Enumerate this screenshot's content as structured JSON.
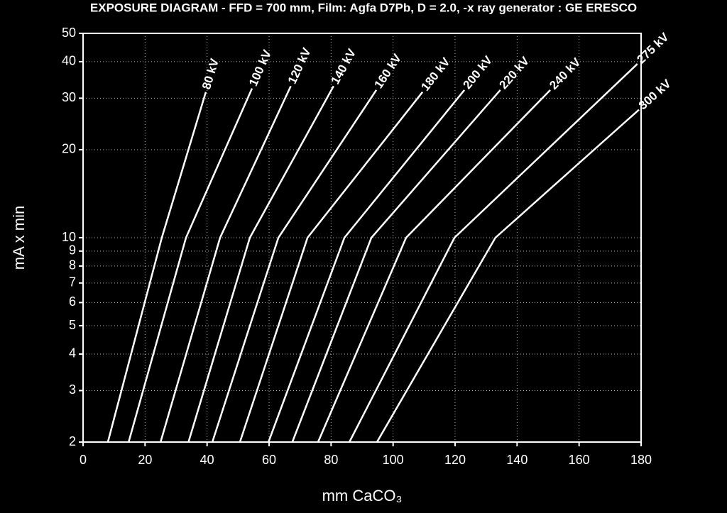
{
  "chart_data": {
    "type": "line",
    "title": "EXPOSURE DIAGRAM - FFD = 700 mm, Film: Agfa D7Pb, D = 2.0, -x ray generator : GE ERESCO",
    "xlabel": "mm CaCO₃",
    "ylabel": "mA x min",
    "xlim": [
      0,
      180
    ],
    "xticks": [
      0,
      20,
      40,
      60,
      80,
      100,
      120,
      140,
      160,
      180
    ],
    "ylim": [
      2,
      50
    ],
    "yticks": [
      2,
      3,
      4,
      5,
      6,
      7,
      8,
      9,
      10,
      20,
      30,
      40,
      50
    ],
    "yscale": "log",
    "grid": true,
    "color": "#ffffff",
    "series": [
      {
        "name": "80 kV",
        "x": [
          8,
          25.4,
          39.6
        ],
        "values": [
          2,
          10,
          31.5
        ]
      },
      {
        "name": "100 kV",
        "x": [
          14.7,
          33.2,
          54.5
        ],
        "values": [
          2,
          10,
          32.4
        ]
      },
      {
        "name": "120 kV",
        "x": [
          25,
          44.2,
          67
        ],
        "values": [
          2,
          10,
          33
        ]
      },
      {
        "name": "140 kV",
        "x": [
          34,
          53.8,
          80.8
        ],
        "values": [
          2,
          10,
          33
        ]
      },
      {
        "name": "160 kV",
        "x": [
          41.7,
          63,
          94.6
        ],
        "values": [
          2,
          10,
          32
        ]
      },
      {
        "name": "180 kV",
        "x": [
          50.6,
          72.4,
          109.5
        ],
        "values": [
          2,
          10,
          31.5
        ]
      },
      {
        "name": "200 kV",
        "x": [
          59.8,
          84.3,
          123
        ],
        "values": [
          2,
          10,
          32
        ]
      },
      {
        "name": "220 kV",
        "x": [
          67.5,
          93,
          134.6
        ],
        "values": [
          2,
          10,
          32
        ]
      },
      {
        "name": "240 kV",
        "x": [
          75.8,
          104.2,
          150.7
        ],
        "values": [
          2,
          10,
          32
        ]
      },
      {
        "name": "275 kV",
        "x": [
          85.9,
          119.8,
          178.8
        ],
        "values": [
          2,
          10,
          39.3
        ]
      },
      {
        "name": "300 kV",
        "x": [
          94.8,
          133,
          179.3
        ],
        "values": [
          2,
          10,
          27.4
        ]
      }
    ]
  }
}
